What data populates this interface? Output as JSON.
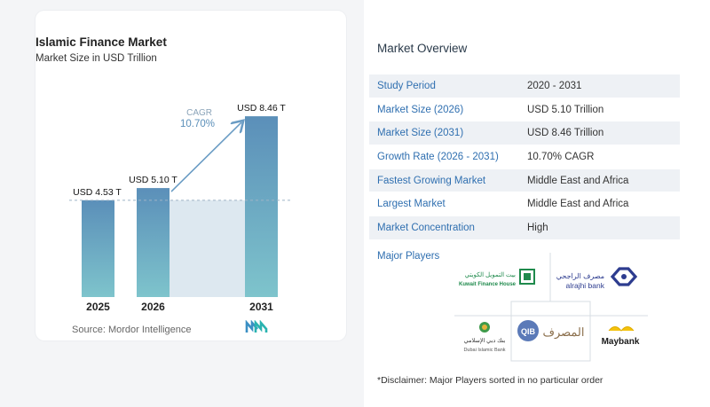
{
  "chart": {
    "title": "Islamic Finance Market",
    "subtitle": "Market Size in USD Trillion",
    "source": "Source: Mordor Intelligence",
    "cagr_label": "CAGR",
    "cagr_value": "10.70%"
  },
  "chart_data": {
    "type": "bar",
    "title": "Islamic Finance Market",
    "subtitle": "Market Size in USD Trillion",
    "categories": [
      "2025",
      "2026",
      "2031"
    ],
    "values": [
      4.53,
      5.1,
      8.46
    ],
    "data_labels": [
      "USD 4.53 T",
      "USD 5.10 T",
      "USD 8.46 T"
    ],
    "unit": "USD Trillion",
    "colors": {
      "bar_top": "#5b8fb9",
      "bar_bottom": "#7ec4cc",
      "band": "#dde8f0",
      "arrow": "#6a9cc4"
    }
  },
  "overview": {
    "title": "Market Overview",
    "rows": [
      {
        "label": "Study Period",
        "value": "2020 - 2031"
      },
      {
        "label": "Market Size (2026)",
        "value": "USD 5.10 Trillion"
      },
      {
        "label": "Market Size (2031)",
        "value": "USD 8.46 Trillion"
      },
      {
        "label": "Growth Rate (2026 - 2031)",
        "value": "10.70% CAGR"
      },
      {
        "label": "Fastest Growing Market",
        "value": "Middle East and Africa"
      },
      {
        "label": "Largest Market",
        "value": "Middle East and Africa"
      },
      {
        "label": "Market Concentration",
        "value": "High"
      }
    ],
    "players_title": "Major Players",
    "players": {
      "kfh_ar": "بيت التمويل الكويتي",
      "kfh_en": "Kuwait Finance House",
      "alrajhi_ar": "مصرف الراجحي",
      "alrajhi_en": "alrajhi bank",
      "dib_ar": "بنك دبي الإسلامي",
      "dib_en": "Dubai Islamic Bank",
      "qib_mark": "QIB",
      "qib_ar": "المصرف",
      "maybank": "Maybank"
    },
    "disclaimer": "*Disclaimer: Major Players sorted in no particular order"
  }
}
